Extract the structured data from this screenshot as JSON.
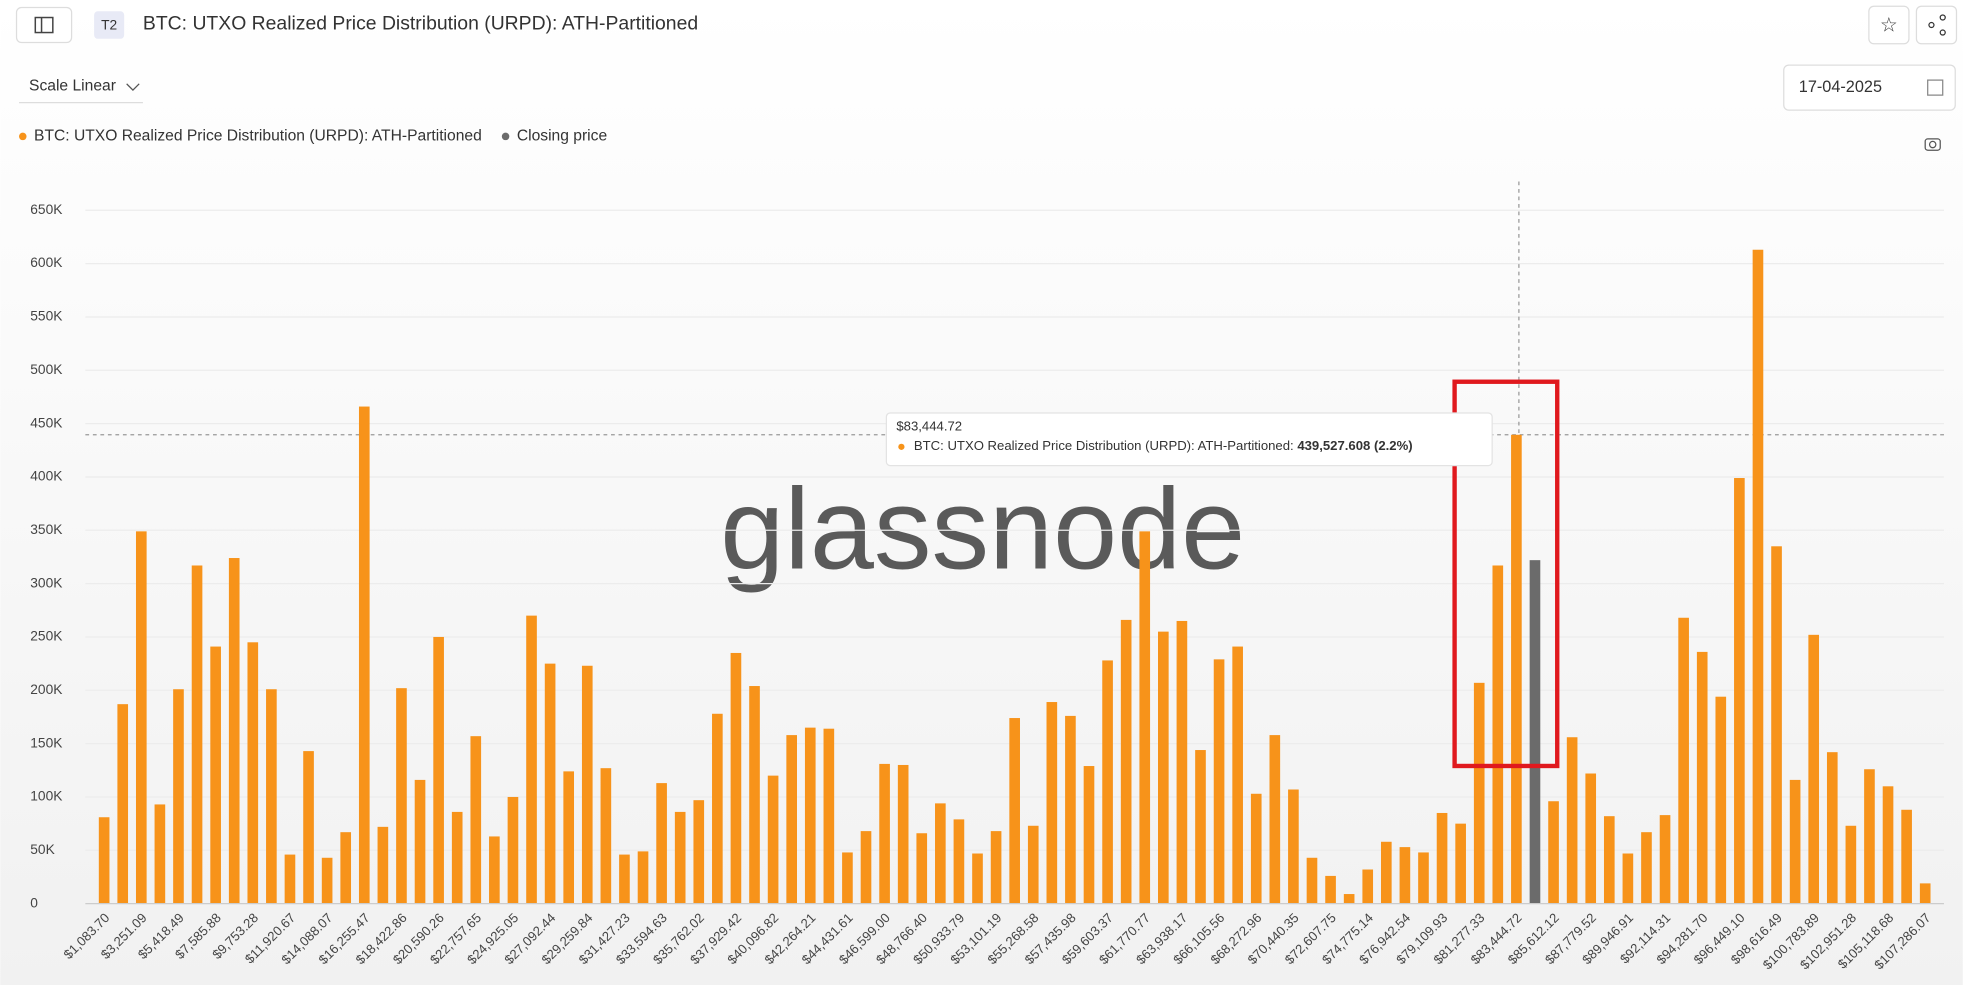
{
  "header": {
    "badge": "T2",
    "title": "BTC: UTXO Realized Price Distribution (URPD): ATH-Partitioned"
  },
  "controls": {
    "scale": "Scale Linear",
    "date": "17-04-2025"
  },
  "watermark": "glassnode",
  "tooltip": {
    "title": "$83,444.72",
    "series": "BTC: UTXO Realized Price Distribution (URPD): ATH-Partitioned:",
    "value": "439,527.608 (2.2%)"
  },
  "chart_data": {
    "type": "bar",
    "categories": [
      "$1,083.70",
      null,
      "$3,251.09",
      null,
      "$5,418.49",
      null,
      "$7,585.88",
      null,
      "$9,753.28",
      null,
      "$11,920.67",
      null,
      "$14,088.07",
      null,
      "$16,255.47",
      null,
      "$18,422.86",
      null,
      "$20,590.26",
      null,
      "$22,757.65",
      null,
      "$24,925.05",
      null,
      "$27,092.44",
      null,
      "$29,259.84",
      null,
      "$31,427.23",
      null,
      "$33,594.63",
      null,
      "$35,762.02",
      null,
      "$37,929.42",
      null,
      "$40,096.82",
      null,
      "$42,264.21",
      null,
      "$44,431.61",
      null,
      "$46,599.00",
      null,
      "$48,766.40",
      null,
      "$50,933.79",
      null,
      "$53,101.19",
      null,
      "$55,268.58",
      null,
      "$57,435.98",
      null,
      "$59,603.37",
      null,
      "$61,770.77",
      null,
      "$63,938.17",
      null,
      "$66,105.56",
      null,
      "$68,272.96",
      null,
      "$70,440.35",
      null,
      "$72,607.75",
      null,
      "$74,775.14",
      null,
      "$76,942.54",
      null,
      "$79,109.93",
      null,
      "$81,277.33",
      null,
      "$83,444.72",
      null,
      "$85,612.12",
      null,
      "$87,779.52",
      null,
      "$89,946.91",
      null,
      "$92,114.31",
      null,
      "$94,281.70",
      null,
      "$96,449.10",
      null,
      "$98,616.49",
      null,
      "$100,783.89",
      null,
      "$102,951.28",
      null,
      "$105,118.68",
      null,
      "$107,286.07"
    ],
    "series": [
      {
        "name": "BTC: UTXO Realized Price Distribution (URPD): ATH-Partitioned",
        "color": "#f7931a",
        "values": [
          81000,
          187000,
          349000,
          93000,
          201000,
          317000,
          241000,
          324000,
          245000,
          201000,
          46000,
          143000,
          43000,
          67000,
          466000,
          72000,
          202000,
          116000,
          250000,
          86000,
          157000,
          63000,
          100000,
          270000,
          225000,
          124000,
          223000,
          127000,
          46000,
          49000,
          113000,
          86000,
          97000,
          178000,
          235000,
          204000,
          120000,
          158000,
          165000,
          164000,
          48000,
          68000,
          131000,
          130000,
          66000,
          94000,
          79000,
          47000,
          68000,
          174000,
          73000,
          189000,
          176000,
          129000,
          228000,
          266000,
          349000,
          255000,
          265000,
          144000,
          229000,
          241000,
          103000,
          158000,
          107000,
          43000,
          26000,
          9000,
          32000,
          58000,
          53000,
          48000,
          85000,
          75000,
          207000,
          317000,
          439527.608,
          null,
          96000,
          156000,
          122000,
          82000,
          47000,
          67000,
          83000,
          268000,
          236000,
          194000,
          399000,
          613000,
          335000,
          116000,
          252000,
          142000,
          73000,
          126000,
          110000,
          88000,
          19000
        ]
      },
      {
        "name": "Closing price",
        "color": "#6b6b6b",
        "values": [
          null,
          null,
          null,
          null,
          null,
          null,
          null,
          null,
          null,
          null,
          null,
          null,
          null,
          null,
          null,
          null,
          null,
          null,
          null,
          null,
          null,
          null,
          null,
          null,
          null,
          null,
          null,
          null,
          null,
          null,
          null,
          null,
          null,
          null,
          null,
          null,
          null,
          null,
          null,
          null,
          null,
          null,
          null,
          null,
          null,
          null,
          null,
          null,
          null,
          null,
          null,
          null,
          null,
          null,
          null,
          null,
          null,
          null,
          null,
          null,
          null,
          null,
          null,
          null,
          null,
          null,
          null,
          null,
          null,
          null,
          null,
          null,
          null,
          null,
          null,
          null,
          null,
          322000,
          null,
          null,
          null,
          null,
          null,
          null,
          null,
          null,
          null,
          null,
          null,
          null,
          null,
          null,
          null,
          null,
          null,
          null,
          null,
          null,
          null
        ]
      }
    ],
    "ylim": [
      0,
      650000
    ],
    "yticks": [
      0,
      {
        "value": 50000,
        "label": "50K"
      },
      {
        "value": 100000,
        "label": "100K"
      },
      {
        "value": 150000,
        "label": "150K"
      },
      {
        "value": 200000,
        "label": "200K"
      },
      {
        "value": 250000,
        "label": "250K"
      },
      {
        "value": 300000,
        "label": "300K"
      },
      {
        "value": 350000,
        "label": "350K"
      },
      {
        "value": 400000,
        "label": "400K"
      },
      {
        "value": 450000,
        "label": "450K"
      },
      {
        "value": 500000,
        "label": "500K"
      },
      {
        "value": 550000,
        "label": "550K"
      },
      {
        "value": 600000,
        "label": "600K"
      },
      {
        "value": 650000,
        "label": "650K"
      }
    ],
    "grid": true
  }
}
